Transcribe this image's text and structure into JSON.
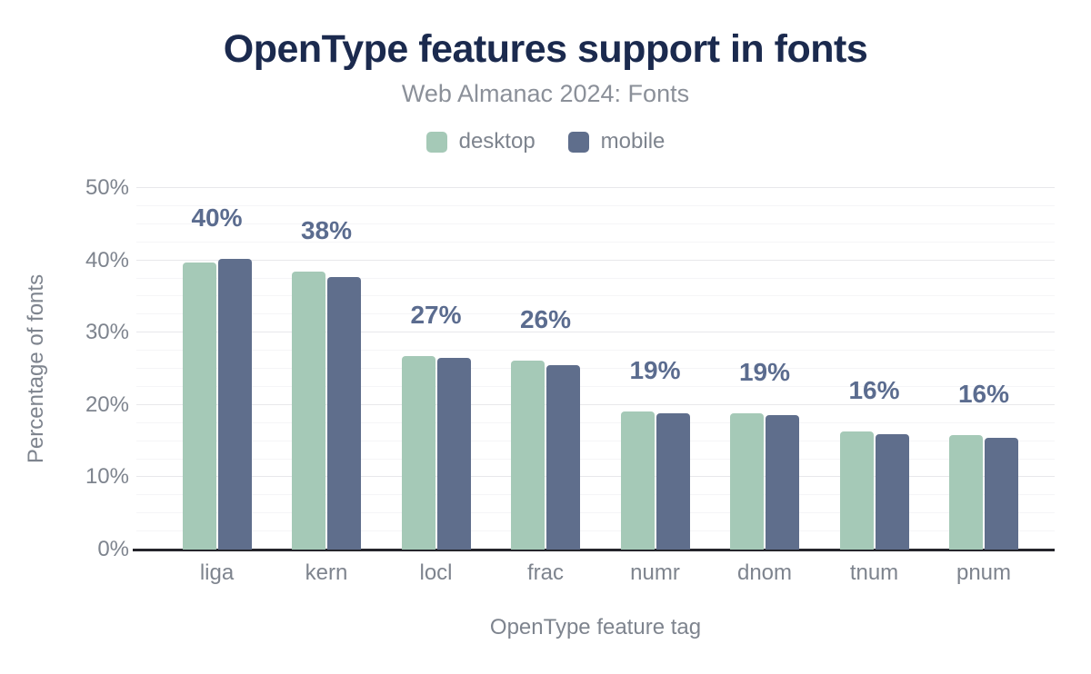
{
  "chart_data": {
    "type": "bar",
    "title": "OpenType features support in fonts",
    "subtitle": "Web Almanac 2024: Fonts",
    "xlabel": "OpenType feature tag",
    "ylabel": "Percentage of fonts",
    "categories": [
      "liga",
      "kern",
      "locl",
      "frac",
      "numr",
      "dnom",
      "tnum",
      "pnum"
    ],
    "series": [
      {
        "name": "desktop",
        "color": "#a5c9b7",
        "values": [
          39.7,
          38.4,
          26.8,
          26.1,
          19.1,
          18.9,
          16.3,
          15.8
        ]
      },
      {
        "name": "mobile",
        "color": "#5f6e8c",
        "values": [
          40.2,
          37.7,
          26.5,
          25.5,
          18.9,
          18.6,
          16.0,
          15.5
        ]
      }
    ],
    "bar_labels": [
      "40%",
      "38%",
      "27%",
      "26%",
      "19%",
      "19%",
      "16%",
      "16%"
    ],
    "ylim": [
      0,
      50
    ],
    "yticks": {
      "values": [
        0,
        10,
        20,
        30,
        40,
        50
      ],
      "labels": [
        "0%",
        "10%",
        "20%",
        "30%",
        "40%",
        "50%"
      ]
    },
    "minor_tick_step": 2.5,
    "grid": true,
    "legend_position": "top"
  },
  "colors": {
    "title": "#1b2a4e",
    "subtitle": "#8b9099",
    "annotation": "#5b6c8f",
    "tick_label": "#7e848e",
    "axis_line": "#25252b",
    "grid_major": "#e8e8eb",
    "grid_minor": "#f5f5f7",
    "background": "#ffffff",
    "desktop": "#a5c9b7",
    "mobile": "#5f6e8c"
  }
}
